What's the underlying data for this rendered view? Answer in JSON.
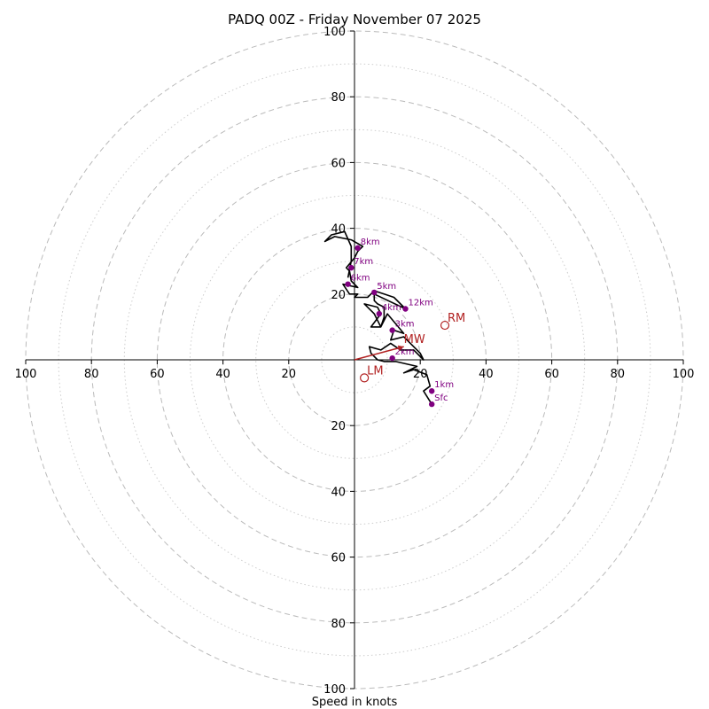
{
  "chart_data": {
    "type": "hodograph",
    "title": "PADQ 00Z - Friday November 07 2025",
    "xlabel": "Speed in knots",
    "range": 100,
    "ring_major": [
      20,
      40,
      60,
      80,
      100
    ],
    "ring_minor": [
      10,
      30,
      50,
      70,
      90
    ],
    "ticks": {
      "left": [
        "100",
        "80",
        "60",
        "40",
        "20"
      ],
      "right": [
        "20",
        "40",
        "60",
        "80",
        "100"
      ],
      "top": [
        "100",
        "80",
        "60",
        "40",
        "20"
      ],
      "bottom": [
        "20",
        "40",
        "60",
        "80",
        "100"
      ]
    },
    "colors": {
      "trace": "#000000",
      "height_marker": "#800080",
      "motion": "#b22222",
      "grid_major": "#bbbbbb",
      "grid_minor": "#cccccc"
    },
    "trace": [
      [
        23.5,
        -13.5
      ],
      [
        21,
        -9.5
      ],
      [
        23,
        -8
      ],
      [
        22,
        -4.5
      ],
      [
        18,
        -3
      ],
      [
        15,
        -4
      ],
      [
        19,
        -2
      ],
      [
        12.5,
        -0.5
      ],
      [
        9,
        -0.5
      ],
      [
        7,
        0
      ],
      [
        5,
        2
      ],
      [
        4.5,
        4
      ],
      [
        8,
        3
      ],
      [
        11,
        5
      ],
      [
        14,
        3
      ],
      [
        18,
        3
      ],
      [
        21,
        0
      ],
      [
        20,
        2
      ],
      [
        15,
        7
      ],
      [
        11,
        6
      ],
      [
        12,
        9
      ],
      [
        15,
        8
      ],
      [
        10,
        14
      ],
      [
        8,
        10
      ],
      [
        6,
        14
      ],
      [
        3,
        17
      ],
      [
        7,
        16
      ],
      [
        8,
        14
      ],
      [
        5,
        10
      ],
      [
        8,
        10
      ],
      [
        9,
        13
      ],
      [
        9,
        16
      ],
      [
        7,
        17
      ],
      [
        6,
        18
      ],
      [
        6,
        20
      ],
      [
        15.5,
        15.5
      ],
      [
        12,
        19
      ],
      [
        9,
        20
      ],
      [
        6,
        21
      ],
      [
        4,
        19
      ],
      [
        0,
        19
      ],
      [
        1,
        20
      ],
      [
        -1.5,
        20
      ],
      [
        -3.5,
        23
      ],
      [
        1,
        22
      ],
      [
        -1,
        24
      ],
      [
        -1.5,
        27
      ],
      [
        -2.5,
        28
      ],
      [
        0,
        31
      ],
      [
        1,
        33
      ],
      [
        2,
        34
      ],
      [
        2.5,
        34.5
      ],
      [
        -1,
        36.5
      ],
      [
        -6,
        37.5
      ],
      [
        -9,
        36
      ],
      [
        -7,
        38
      ],
      [
        -3,
        39
      ],
      [
        -1,
        34.5
      ],
      [
        -1,
        30
      ],
      [
        -2,
        25
      ]
    ],
    "height_labels": [
      {
        "label": "Sfc",
        "u": 23.5,
        "v": -13.5
      },
      {
        "label": "1km",
        "u": 23.5,
        "v": -9.5
      },
      {
        "label": "2km",
        "u": 11.5,
        "v": 0.5
      },
      {
        "label": "3km",
        "u": 11.5,
        "v": 9
      },
      {
        "label": "4km",
        "u": 7.5,
        "v": 14
      },
      {
        "label": "5km",
        "u": 6,
        "v": 20.5
      },
      {
        "label": "6km",
        "u": -2,
        "v": 23
      },
      {
        "label": "7km",
        "u": -1,
        "v": 28
      },
      {
        "label": "8km",
        "u": 1,
        "v": 34
      },
      {
        "label": "12km",
        "u": 15.5,
        "v": 15.5
      }
    ],
    "storm_motion": {
      "RM": {
        "label": "RM",
        "u": 27.5,
        "v": 10.5
      },
      "LM": {
        "label": "LM",
        "u": 3,
        "v": -5.5
      },
      "MW": {
        "label": "MW",
        "u": 15,
        "v": 4
      }
    }
  }
}
